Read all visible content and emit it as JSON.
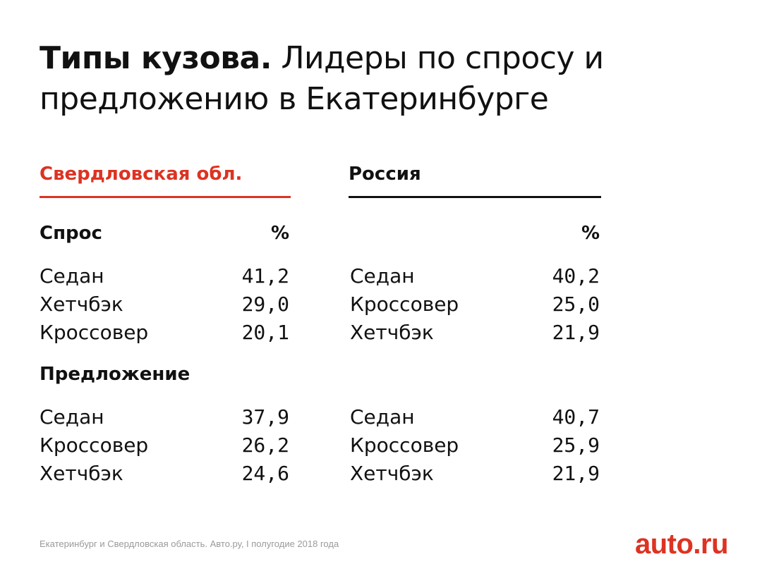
{
  "title": {
    "bold": "Типы кузова.",
    "rest": "Лидеры по спросу и предложению в Екатеринбурге"
  },
  "chart_data": {
    "type": "table",
    "percent_label": "%",
    "regions": [
      {
        "name": "Свердловская обл.",
        "demand": [
          {
            "label": "Седан",
            "value": "41,2"
          },
          {
            "label": "Хетчбэк",
            "value": "29,0"
          },
          {
            "label": "Кроссовер",
            "value": "20,1"
          }
        ],
        "supply": [
          {
            "label": "Седан",
            "value": "37,9"
          },
          {
            "label": "Кроссовер",
            "value": "26,2"
          },
          {
            "label": "Хетчбэк",
            "value": "24,6"
          }
        ]
      },
      {
        "name": "Россия",
        "demand": [
          {
            "label": "Седан",
            "value": "40,2"
          },
          {
            "label": "Кроссовер",
            "value": "25,0"
          },
          {
            "label": "Хетчбэк",
            "value": "21,9"
          }
        ],
        "supply": [
          {
            "label": "Седан",
            "value": "40,7"
          },
          {
            "label": "Кроссовер",
            "value": "25,9"
          },
          {
            "label": "Хетчбэк",
            "value": "21,9"
          }
        ]
      }
    ],
    "sections": {
      "demand": "Спрос",
      "supply": "Предложение"
    }
  },
  "footnote": "Екатеринбург и Свердловская область. Авто.ру, I полугодие 2018 года",
  "logo": "auto.ru",
  "colors": {
    "accent": "#dd3322",
    "text": "#111111",
    "muted": "#9a9a9a"
  }
}
